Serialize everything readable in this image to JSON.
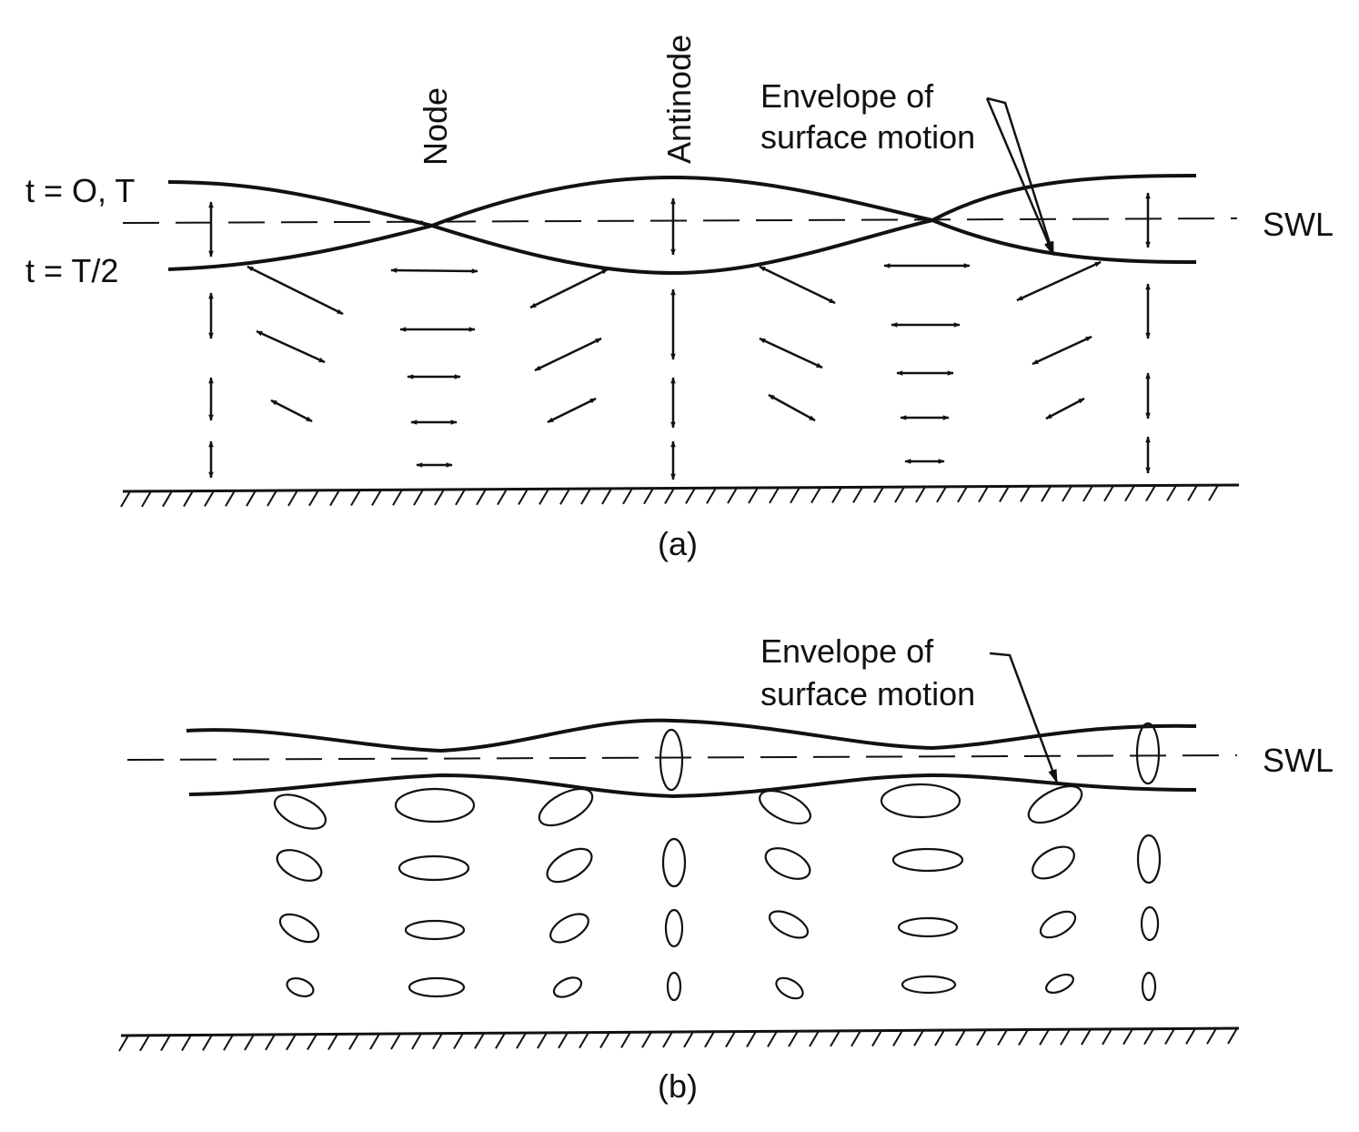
{
  "panel_a": {
    "time_label_1": "t = O, T",
    "time_label_2": "t = T/2",
    "node_label": "Node",
    "antinode_label": "Antinode",
    "envelope_label_line1": "Envelope of",
    "envelope_label_line2": "surface motion",
    "swl_label": "SWL",
    "caption": "(a)"
  },
  "panel_b": {
    "envelope_label_line1": "Envelope of",
    "envelope_label_line2": "surface motion",
    "swl_label": "SWL",
    "caption": "(b)"
  },
  "colors": {
    "ink": "#111111",
    "background": "#ffffff"
  }
}
